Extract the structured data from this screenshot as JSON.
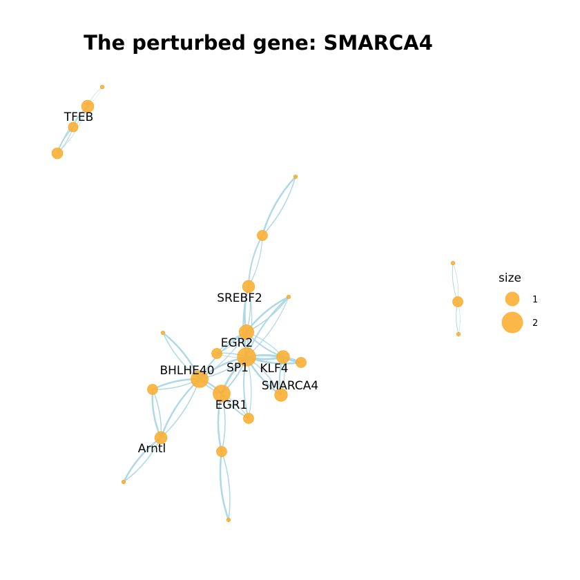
{
  "title": "The perturbed gene: SMARCA4",
  "colors": {
    "edge": "#add8e6",
    "node": "#fbb034",
    "node_stroke": "#f2a81e"
  },
  "legend": {
    "title": "size",
    "items": [
      {
        "label": "1",
        "size": 1
      },
      {
        "label": "2",
        "size": 2
      }
    ]
  },
  "nodes": [
    {
      "id": "tfeb_top",
      "label": "",
      "size": 0.2
    },
    {
      "id": "tfeb_big",
      "label": "",
      "size": 1.2
    },
    {
      "id": "tfeb",
      "label": "TFEB",
      "size": 0.8
    },
    {
      "id": "tfeb_low",
      "label": "",
      "size": 1.0
    },
    {
      "id": "sb_top",
      "label": "",
      "size": 0.2
    },
    {
      "id": "sb_mid",
      "label": "",
      "size": 0.9
    },
    {
      "id": "srebf2",
      "label": "SREBF2",
      "size": 1.2
    },
    {
      "id": "egr2",
      "label": "EGR2",
      "size": 1.6
    },
    {
      "id": "n_top_right",
      "label": "",
      "size": 0.2
    },
    {
      "id": "sp1",
      "label": "SP1",
      "size": 2.2
    },
    {
      "id": "n_small_left",
      "label": "",
      "size": 0.9
    },
    {
      "id": "klf4",
      "label": "KLF4",
      "size": 1.3
    },
    {
      "id": "n_right",
      "label": "",
      "size": 0.9
    },
    {
      "id": "smarca4",
      "label": "SMARCA4",
      "size": 1.3
    },
    {
      "id": "bhlhe40",
      "label": "BHLHE40",
      "size": 2.0
    },
    {
      "id": "n_bh_top",
      "label": "",
      "size": 0.2
    },
    {
      "id": "n_left",
      "label": "",
      "size": 0.9
    },
    {
      "id": "egr1",
      "label": "EGR1",
      "size": 2.0
    },
    {
      "id": "n_below",
      "label": "",
      "size": 0.9
    },
    {
      "id": "arntl",
      "label": "Arntl",
      "size": 1.2
    },
    {
      "id": "n_arntl_low",
      "label": "",
      "size": 0.2
    },
    {
      "id": "n_down",
      "label": "",
      "size": 0.9
    },
    {
      "id": "n_bottom",
      "label": "",
      "size": 0.2
    },
    {
      "id": "iso_top",
      "label": "",
      "size": 0.2
    },
    {
      "id": "iso_mid",
      "label": "",
      "size": 0.9
    },
    {
      "id": "iso_bot",
      "label": "",
      "size": 0.2
    }
  ],
  "edges": [
    {
      "from": "tfeb_top",
      "to": "tfeb_big",
      "weight": 0.6
    },
    {
      "from": "tfeb_big",
      "to": "tfeb",
      "weight": 1.5
    },
    {
      "from": "tfeb",
      "to": "tfeb_low",
      "weight": 2.0
    },
    {
      "from": "tfeb_big",
      "to": "tfeb_low",
      "weight": 1.0
    },
    {
      "from": "sb_top",
      "to": "sb_mid",
      "weight": 2.5
    },
    {
      "from": "sb_mid",
      "to": "srebf2",
      "weight": 2.0
    },
    {
      "from": "srebf2",
      "to": "egr2",
      "weight": 2.5
    },
    {
      "from": "srebf2",
      "to": "sp1",
      "weight": 2.0
    },
    {
      "from": "n_top_right",
      "to": "egr2",
      "weight": 2.5
    },
    {
      "from": "n_top_right",
      "to": "sp1",
      "weight": 2.0
    },
    {
      "from": "egr2",
      "to": "sp1",
      "weight": 3.0
    },
    {
      "from": "egr2",
      "to": "klf4",
      "weight": 2.0
    },
    {
      "from": "egr2",
      "to": "bhlhe40",
      "weight": 2.0
    },
    {
      "from": "egr2",
      "to": "n_small_left",
      "weight": 1.5
    },
    {
      "from": "sp1",
      "to": "klf4",
      "weight": 3.0
    },
    {
      "from": "sp1",
      "to": "n_right",
      "weight": 2.5
    },
    {
      "from": "sp1",
      "to": "smarca4",
      "weight": 2.5
    },
    {
      "from": "sp1",
      "to": "egr1",
      "weight": 3.0
    },
    {
      "from": "sp1",
      "to": "bhlhe40",
      "weight": 2.5
    },
    {
      "from": "sp1",
      "to": "n_small_left",
      "weight": 1.5
    },
    {
      "from": "sp1",
      "to": "n_below",
      "weight": 2.0
    },
    {
      "from": "klf4",
      "to": "n_right",
      "weight": 2.0
    },
    {
      "from": "klf4",
      "to": "smarca4",
      "weight": 2.0
    },
    {
      "from": "egr1",
      "to": "bhlhe40",
      "weight": 2.5
    },
    {
      "from": "egr1",
      "to": "n_below",
      "weight": 2.0
    },
    {
      "from": "egr1",
      "to": "n_down",
      "weight": 2.5
    },
    {
      "from": "bhlhe40",
      "to": "n_bh_top",
      "weight": 2.5
    },
    {
      "from": "bhlhe40",
      "to": "n_left",
      "weight": 2.5
    },
    {
      "from": "bhlhe40",
      "to": "arntl",
      "weight": 2.5
    },
    {
      "from": "n_left",
      "to": "arntl",
      "weight": 2.5
    },
    {
      "from": "arntl",
      "to": "n_arntl_low",
      "weight": 2.5
    },
    {
      "from": "n_down",
      "to": "n_bottom",
      "weight": 2.5
    },
    {
      "from": "iso_top",
      "to": "iso_mid",
      "weight": 1.0
    },
    {
      "from": "iso_mid",
      "to": "iso_bot",
      "weight": 1.0
    }
  ]
}
